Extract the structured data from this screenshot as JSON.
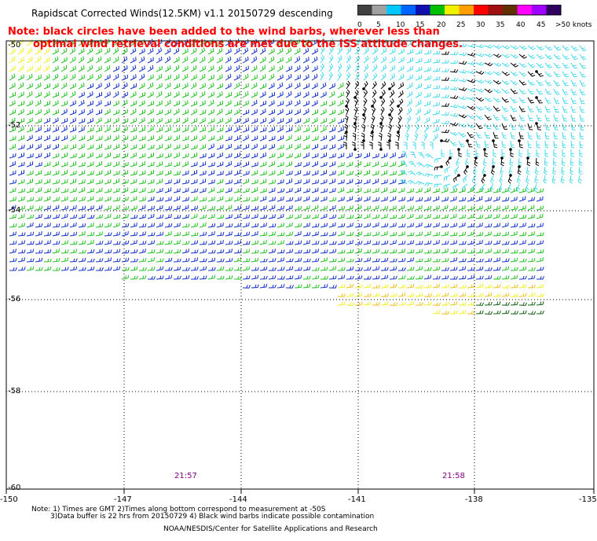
{
  "title": "Rapidscat Corrected Winds(12.5KM) v1.1 20150729 descending",
  "note_line1": "Note: black circles have been added to the wind barbs, wherever less than",
  "note_line2": "optimal wind retrieval conditions are met due to the ISS attitude changes.",
  "color_scale": {
    "units_label": ">50 knots",
    "labels": [
      "0",
      "5",
      "10",
      "15",
      "20",
      "25",
      "30",
      "35",
      "40",
      "45",
      ">50 knots"
    ],
    "colors": [
      "#404040",
      "#a0a0a0",
      "#00c8ff",
      "#0064ff",
      "#1010b0",
      "#00c000",
      "#f0f000",
      "#ffa000",
      "#ff0000",
      "#a01010",
      "#603000",
      "#ff00ff",
      "#a000ff",
      "#300060"
    ]
  },
  "lat_labels": [
    "-50",
    "-52",
    "-54",
    "-56",
    "-58",
    "-60"
  ],
  "lon_labels": [
    "-150",
    "-147",
    "-144",
    "-141",
    "-138",
    "-135"
  ],
  "time_labels": [
    "21:57",
    "21:58"
  ],
  "footnote_line1": "Note: 1) Times are GMT 2)Times along bottom correspond to measurement at -50S",
  "footnote_line2": "3)Data buffer is 22 hrs from 20150729 4) Black wind barbs indicate possible contamination",
  "credit": "NOAA/NESDIS/Center for Satellite Applications and Research",
  "map": {
    "lat_range": [
      -60,
      -50
    ],
    "lon_range": [
      -150,
      -135
    ],
    "barb_colors": {
      "cyan": "#40d8f0",
      "blue": "#1030c8",
      "green": "#20c020",
      "yellow": "#f0f020",
      "orange": "#f0c020",
      "darkgreen": "#106010",
      "black": "#000000"
    }
  }
}
